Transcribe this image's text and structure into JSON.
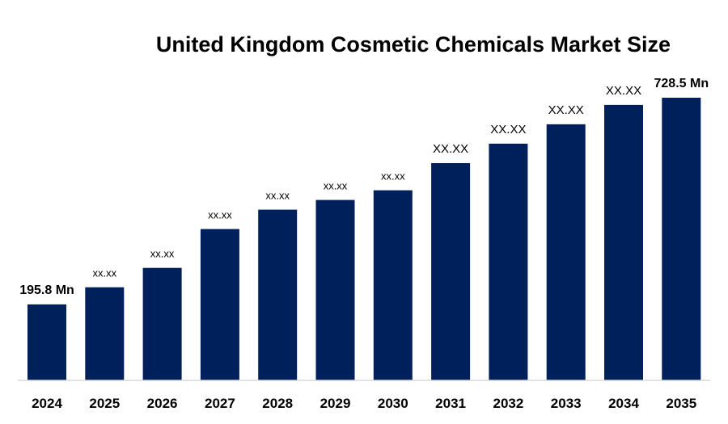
{
  "chart_data": {
    "type": "bar",
    "title": "United Kingdom Cosmetic Chemicals Market Size",
    "xlabel": "",
    "ylabel": "",
    "categories": [
      "2024",
      "2025",
      "2026",
      "2027",
      "2028",
      "2029",
      "2030",
      "2031",
      "2032",
      "2033",
      "2034",
      "2035"
    ],
    "values": [
      195.8,
      240,
      290,
      390,
      440,
      465,
      490,
      560,
      610,
      660,
      710,
      728.5
    ],
    "data_labels": [
      "195.8 Mn",
      "xx.xx",
      "xx.xx",
      "xx.xx",
      "xx.xx",
      "xx.xx",
      "xx.xx",
      "XX.XX",
      "XX.XX",
      "XX.XX",
      "XX.XX",
      "728.5 Mn"
    ],
    "ylim": [
      0,
      728.5
    ],
    "grid": false,
    "legend": "none",
    "colors": {
      "bar": "#00205B",
      "axis": "#d9d9d9",
      "text": "#000000"
    }
  }
}
